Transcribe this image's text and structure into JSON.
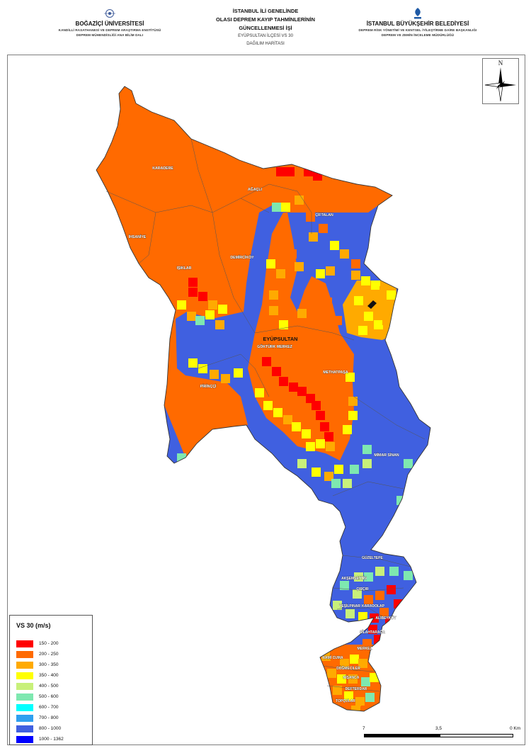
{
  "header": {
    "left": {
      "org": "BOĞAZİÇİ ÜNİVERSİTESİ",
      "dept_line1": "KANDİLLİ RASATHANESİ VE DEPREM ARAŞTIRMA ENSTİTÜSÜ",
      "dept_line2": "DEPREM MÜHENDİSLİĞİ ANA BİLİM DALI"
    },
    "center": {
      "title_line1": "İSTANBUL İLİ GENELİNDE",
      "title_line2": "OLASI DEPREM KAYIP TAHMİNLERİNİN",
      "title_line3": "GÜNCELLENMESİ İŞİ",
      "subtitle_line1": "EYÜPSULTAN İLÇESİ VS 30",
      "subtitle_line2": "DAĞILIM HARİTASI"
    },
    "right": {
      "org": "İSTANBUL BÜYÜKŞEHİR BELEDİYESİ",
      "dept_line1": "DEPREM RİSK YÖNETİMİ VE KENTSEL İYİLEŞTİRME DAİRE BAŞKANLIĞI",
      "dept_line2": "DEPREM VE ZEMİN İNCELEME MÜDÜRLÜĞÜ"
    }
  },
  "north_arrow": {
    "letter": "N",
    "icon": "compass-rose-icon"
  },
  "map": {
    "district_label": "EYÜPSULTAN",
    "labels": [
      "KARADERE",
      "AĞAÇLI",
      "ÇİFTALAN",
      "IŞIKLAR",
      "DEMİRCİKÖY",
      "İHSANİYE",
      "GÖKTÜRK MERKEZ",
      "METHATPAŞA",
      "PİRİNÇÇİ",
      "MİMAR SİNAN",
      "GÜZELTEPE",
      "AKŞEMSETTİN",
      "ÇIRÇIR",
      "KARADOLAP",
      "YEŞİLPINAR",
      "ALİBEYKÖY",
      "SİLAHTARAĞA",
      "MERKEZ",
      "NİŞANCA",
      "DÜĞMECİLER",
      "DEFTERDAR",
      "TOPÇULAR",
      "RAMİ CUMA"
    ]
  },
  "legend": {
    "title": "VS 30 (m/s)",
    "items": [
      {
        "label": "150 - 200",
        "color": "#ff0000"
      },
      {
        "label": "200 - 250",
        "color": "#ff6a00"
      },
      {
        "label": "300 - 350",
        "color": "#ffaa00"
      },
      {
        "label": "350 - 400",
        "color": "#ffff00"
      },
      {
        "label": "400 - 500",
        "color": "#c8f07a"
      },
      {
        "label": "500 - 600",
        "color": "#7ee8b0"
      },
      {
        "label": "600 - 700",
        "color": "#00ffff"
      },
      {
        "label": "700 - 800",
        "color": "#2fa0f0"
      },
      {
        "label": "800 - 1000",
        "color": "#4060e0"
      },
      {
        "label": "1000 - 1362",
        "color": "#0000ff"
      }
    ]
  },
  "scale_bar": {
    "labels": [
      "7",
      "3,5",
      "0 Km"
    ]
  }
}
